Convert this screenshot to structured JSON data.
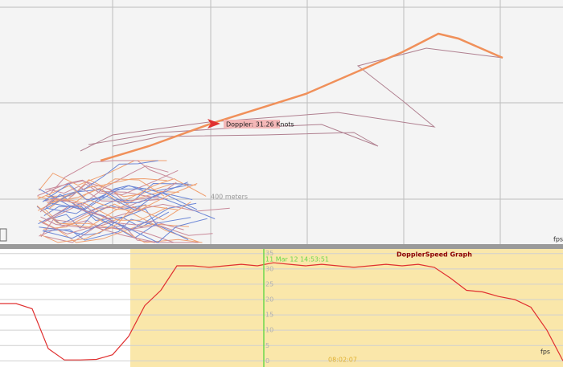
{
  "map": {
    "annotation": "Doppler: 31.26 Knots",
    "scale_label": "400 meters",
    "unit_label": "fps"
  },
  "graph": {
    "title": "DopplerSpeed Graph",
    "cursor_time": "11 Mar 12 14:53:51",
    "start_time": "08:02:07",
    "unit_label": "fps",
    "ylim": [
      -2,
      36.5
    ],
    "yticks": [
      0,
      5,
      10,
      15,
      20,
      25,
      30,
      35
    ],
    "color": "#e03030",
    "values": [
      18.7,
      18.7,
      17,
      4,
      0.3,
      0.3,
      0.5,
      2,
      8,
      18,
      23,
      31,
      31,
      30.5,
      31,
      31.5,
      31,
      32,
      31.5,
      31,
      31.5,
      31,
      30.5,
      31,
      31.5,
      31,
      31.5,
      30.5,
      27,
      23,
      22.5,
      21,
      20,
      17.5,
      10,
      0
    ]
  }
}
